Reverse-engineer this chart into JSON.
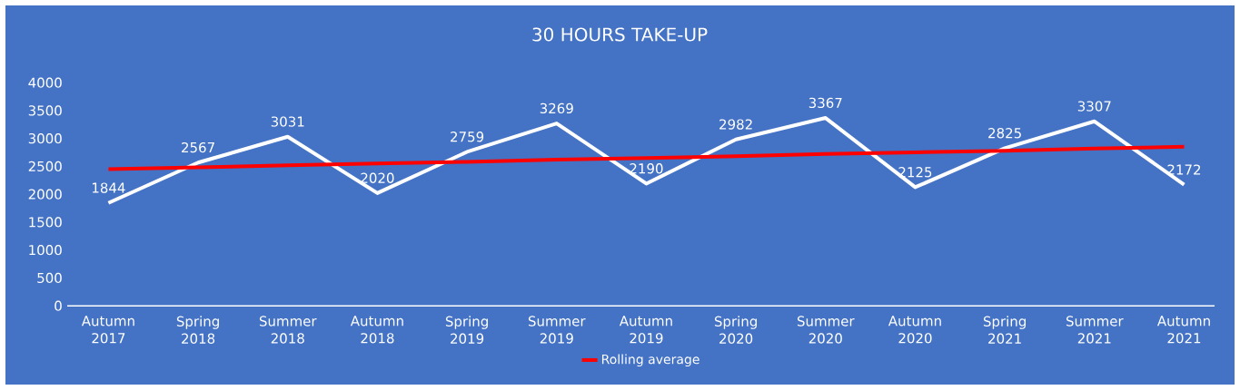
{
  "chart_data": {
    "type": "line",
    "title": "30 HOURS TAKE-UP",
    "categories": [
      "Autumn 2017",
      "Spring 2018",
      "Summer 2018",
      "Autumn 2018",
      "Spring 2019",
      "Summer 2019",
      "Autumn 2019",
      "Spring 2020",
      "Summer 2020",
      "Autumn 2020",
      "Spring 2021",
      "Summer 2021",
      "Autumn 2021"
    ],
    "series": [
      {
        "color": "#ffffff",
        "values": [
          1844,
          2567,
          3031,
          2020,
          2759,
          3269,
          2190,
          2982,
          3367,
          2125,
          2825,
          3307,
          2172
        ],
        "data_labels": true
      },
      {
        "name": "Rolling average",
        "color": "#ff0000",
        "values": [
          2450,
          2480,
          2520,
          2550,
          2580,
          2620,
          2650,
          2680,
          2720,
          2750,
          2780,
          2820,
          2850
        ]
      }
    ],
    "ylim": [
      0,
      4000
    ],
    "yticks": [
      0,
      500,
      1000,
      1500,
      2000,
      2500,
      3000,
      3500,
      4000
    ],
    "grid": false,
    "legend": "bottom",
    "marker": "none",
    "line_style": "solid"
  }
}
